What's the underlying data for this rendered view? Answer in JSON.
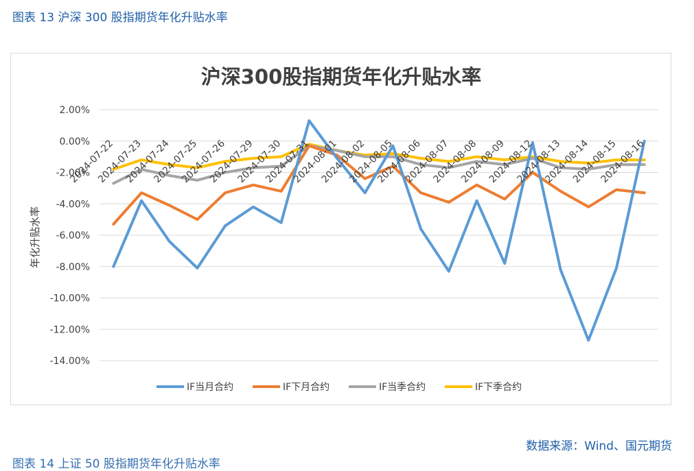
{
  "figure_caption": "图表 13  沪深 300 股指期货年化升贴水率",
  "source_note": "数据来源：Wind、国元期货",
  "next_caption_partial": "图表 14  上证 50 股指期货年化升贴水率",
  "chart_data": {
    "type": "line",
    "title": "沪深300股指期货年化升贴水率",
    "xlabel": "",
    "ylabel": "年化升贴水率",
    "ylim": [
      -0.14,
      0.02
    ],
    "yticks": [
      0.02,
      0.0,
      -0.02,
      -0.04,
      -0.06,
      -0.08,
      -0.1,
      -0.12,
      -0.14
    ],
    "ytick_labels": [
      "2.00%",
      "0.00%",
      "-2.00%",
      "-4.00%",
      "-6.00%",
      "-8.00%",
      "-10.00%",
      "-12.00%",
      "-14.00%"
    ],
    "grid": true,
    "legend_position": "bottom",
    "categories": [
      "2024-07-22",
      "2024-07-23",
      "2024-07-24",
      "2024-07-25",
      "2024-07-26",
      "2024-07-29",
      "2024-07-30",
      "2024-07-31",
      "2024-08-01",
      "2024-08-02",
      "2024-08-05",
      "2024-08-06",
      "2024-08-07",
      "2024-08-08",
      "2024-08-09",
      "2024-08-12",
      "2024-08-13",
      "2024-08-14",
      "2024-08-15",
      "2024-08-16"
    ],
    "series": [
      {
        "name": "IF当月合约",
        "color": "#5b9bd5",
        "values": [
          -0.08,
          -0.038,
          -0.064,
          -0.081,
          -0.054,
          -0.042,
          -0.052,
          0.013,
          -0.011,
          -0.033,
          -0.003,
          -0.056,
          -0.083,
          -0.038,
          -0.078,
          -0.001,
          -0.082,
          -0.127,
          -0.081,
          0.0
        ]
      },
      {
        "name": "IF下月合约",
        "color": "#ed7d31",
        "values": [
          -0.053,
          -0.033,
          -0.041,
          -0.05,
          -0.033,
          -0.028,
          -0.032,
          -0.003,
          -0.009,
          -0.024,
          -0.016,
          -0.033,
          -0.039,
          -0.028,
          -0.037,
          -0.02,
          -0.032,
          -0.042,
          -0.031,
          -0.033
        ]
      },
      {
        "name": "IF当季合约",
        "color": "#a5a5a5",
        "values": [
          -0.027,
          -0.018,
          -0.022,
          -0.025,
          -0.02,
          -0.017,
          -0.016,
          -0.003,
          -0.006,
          -0.01,
          -0.01,
          -0.015,
          -0.017,
          -0.013,
          -0.015,
          -0.011,
          -0.017,
          -0.018,
          -0.015,
          -0.015
        ]
      },
      {
        "name": "IF下季合约",
        "color": "#ffc000",
        "values": [
          -0.018,
          -0.012,
          -0.015,
          -0.017,
          -0.013,
          -0.011,
          -0.01,
          -0.002,
          -0.006,
          -0.009,
          -0.008,
          -0.011,
          -0.013,
          -0.01,
          -0.012,
          -0.01,
          -0.013,
          -0.014,
          -0.012,
          -0.012
        ]
      }
    ]
  }
}
